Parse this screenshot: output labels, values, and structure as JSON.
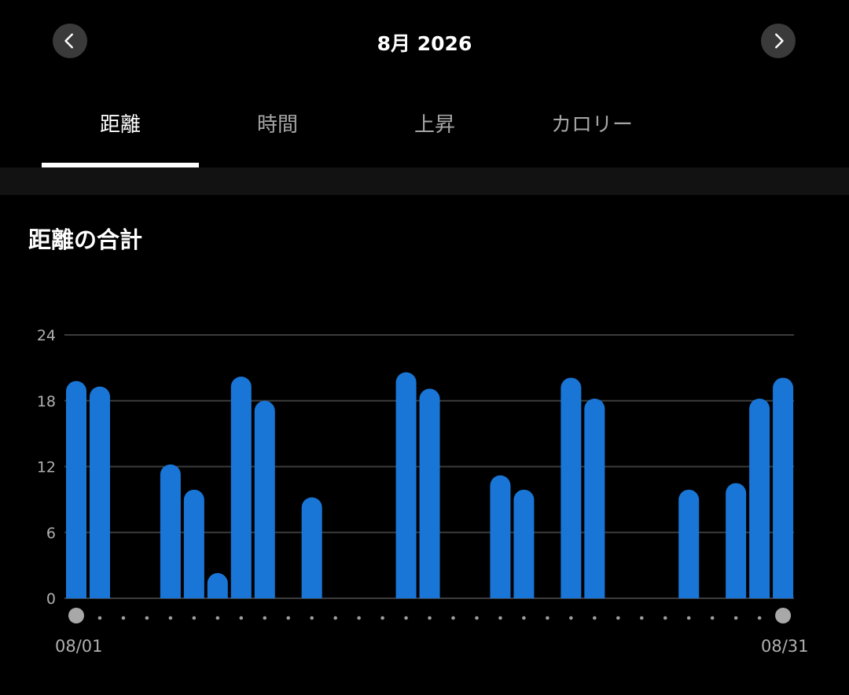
{
  "header": {
    "month": "8月 2026",
    "prev_icon": "chevron-left-icon",
    "next_icon": "chevron-right-icon"
  },
  "tabs": [
    {
      "label": "距離",
      "active": true
    },
    {
      "label": "時間",
      "active": false
    },
    {
      "label": "上昇",
      "active": false
    },
    {
      "label": "カロリー",
      "active": false
    }
  ],
  "chart_title": "距離の合計",
  "colors": {
    "bar": "#1a76d6",
    "grid": "#3c3c3c",
    "dot": "#9e9e9e",
    "handle": "#a8a8a8"
  },
  "chart_data": {
    "type": "bar",
    "categories": [
      "1",
      "2",
      "3",
      "4",
      "5",
      "6",
      "7",
      "8",
      "9",
      "10",
      "11",
      "12",
      "13",
      "14",
      "15",
      "16",
      "17",
      "18",
      "19",
      "20",
      "21",
      "22",
      "23",
      "24",
      "25",
      "26",
      "27",
      "28",
      "29",
      "30",
      "31"
    ],
    "values": [
      19.8,
      19.3,
      0,
      0,
      12.2,
      9.9,
      2.3,
      20.2,
      18,
      0,
      9.2,
      0,
      0,
      0,
      20.6,
      19.1,
      0,
      0,
      11.2,
      9.9,
      0,
      20.1,
      18.2,
      0,
      0,
      0,
      9.9,
      0,
      10.5,
      18.2,
      20.1
    ],
    "y_ticks": [
      "0",
      "6",
      "12",
      "18",
      "24"
    ],
    "ylim": [
      0,
      24
    ],
    "grid": true,
    "x_start_label": "08/01",
    "x_end_label": "08/31"
  }
}
